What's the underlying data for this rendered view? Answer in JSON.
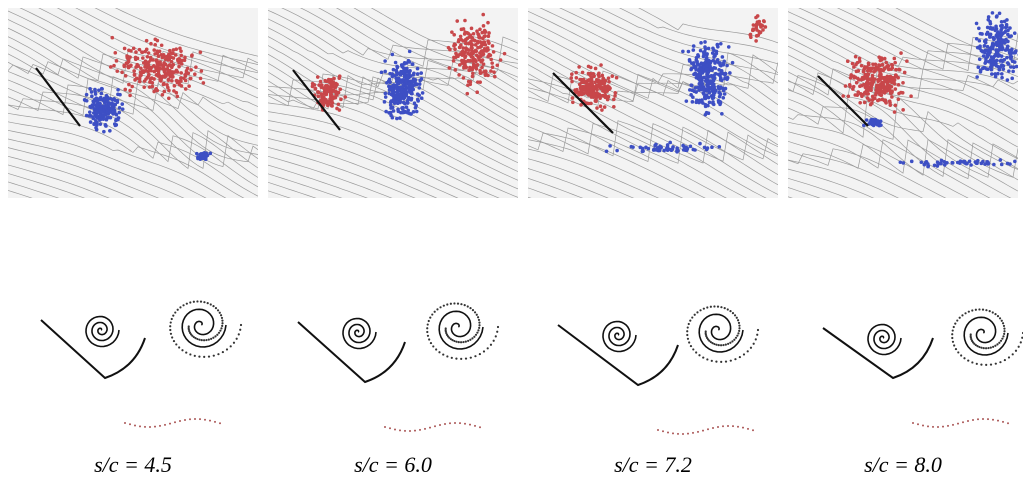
{
  "figure": {
    "panels": [
      {
        "label": "s/c = 4.5"
      },
      {
        "label": "s/c = 6.0"
      },
      {
        "label": "s/c = 7.2"
      },
      {
        "label": "s/c = 8.0"
      }
    ]
  }
}
